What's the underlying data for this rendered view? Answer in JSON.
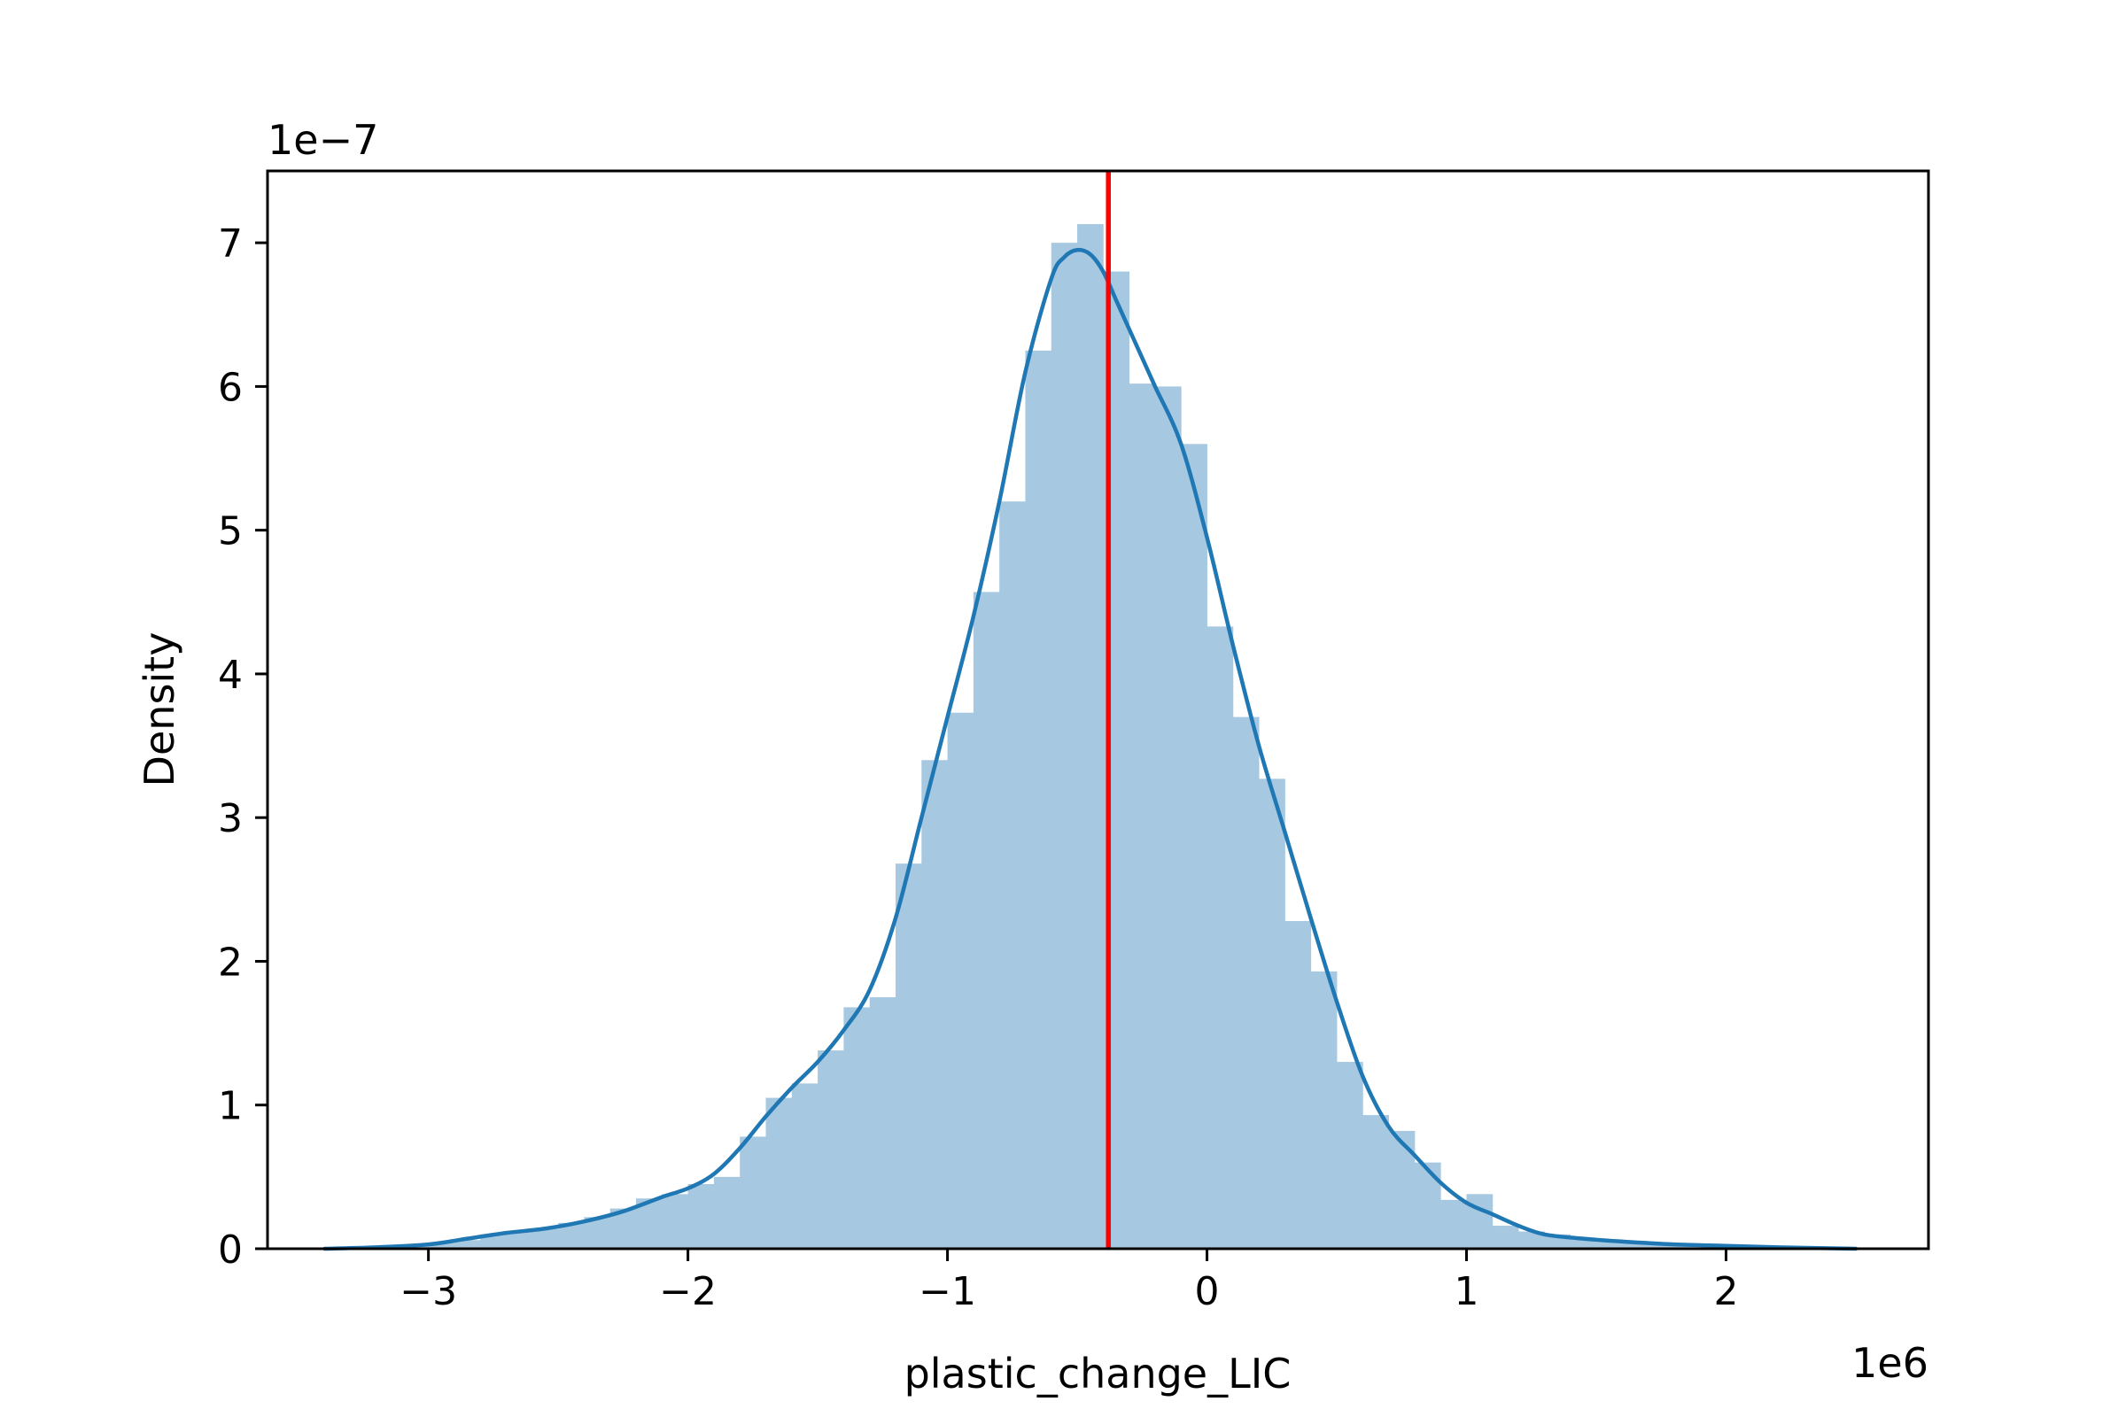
{
  "chart_data": {
    "type": "bar",
    "subtype": "histogram-with-kde",
    "title": "",
    "xlabel": "plastic_change_LIC",
    "ylabel": "Density",
    "x_offset_text": "1e6",
    "y_offset_text": "1e−7",
    "x_multiplier": 1000000,
    "y_multiplier": 1e-07,
    "xlim": [
      -3.62,
      2.78
    ],
    "ylim": [
      0,
      7.5
    ],
    "x_ticks": [
      -3,
      -2,
      -1,
      0,
      1,
      2
    ],
    "x_tick_labels": [
      "−3",
      "−2",
      "−1",
      "0",
      "1",
      "2"
    ],
    "y_ticks": [
      0,
      1,
      2,
      3,
      4,
      5,
      6,
      7
    ],
    "y_tick_labels": [
      "0",
      "1",
      "2",
      "3",
      "4",
      "5",
      "6",
      "7"
    ],
    "grid": false,
    "legend": "none",
    "histogram": {
      "color": "#a6c8e1",
      "bin_edges": [
        -3.4,
        -3.3,
        -3.2,
        -3.1,
        -3.0,
        -2.9,
        -2.8,
        -2.7,
        -2.6,
        -2.5,
        -2.4,
        -2.3,
        -2.2,
        -2.1,
        -2.0,
        -1.9,
        -1.8,
        -1.7,
        -1.6,
        -1.5,
        -1.4,
        -1.3,
        -1.2,
        -1.1,
        -1.0,
        -0.9,
        -0.8,
        -0.7,
        -0.6,
        -0.5,
        -0.4,
        -0.3,
        -0.2,
        -0.1,
        0.0,
        0.1,
        0.2,
        0.3,
        0.4,
        0.5,
        0.6,
        0.7,
        0.8,
        0.9,
        1.0,
        1.1,
        1.2,
        1.3,
        1.4,
        1.5,
        1.6,
        1.7,
        1.8,
        1.9,
        2.0,
        2.1,
        2.2,
        2.3,
        2.4,
        2.5
      ],
      "values": [
        0.01,
        0.01,
        0.02,
        0.02,
        0.04,
        0.06,
        0.1,
        0.12,
        0.14,
        0.18,
        0.22,
        0.28,
        0.35,
        0.38,
        0.45,
        0.5,
        0.78,
        1.05,
        1.15,
        1.38,
        1.68,
        1.75,
        2.68,
        3.4,
        3.73,
        4.57,
        5.2,
        6.25,
        7.0,
        7.13,
        6.8,
        6.02,
        6.0,
        5.6,
        4.33,
        3.7,
        3.27,
        2.28,
        1.93,
        1.3,
        0.93,
        0.82,
        0.6,
        0.34,
        0.38,
        0.16,
        0.12,
        0.1,
        0.07,
        0.06,
        0.05,
        0.04,
        0.02,
        0.02,
        0.01,
        0.01,
        0.01,
        0.01,
        0.01
      ]
    },
    "kde": {
      "color": "#1f77b4",
      "x": [
        -3.4,
        -3.2,
        -3.0,
        -2.85,
        -2.7,
        -2.55,
        -2.4,
        -2.25,
        -2.1,
        -2.0,
        -1.9,
        -1.8,
        -1.7,
        -1.6,
        -1.5,
        -1.4,
        -1.3,
        -1.2,
        -1.1,
        -1.0,
        -0.9,
        -0.8,
        -0.7,
        -0.6,
        -0.55,
        -0.5,
        -0.45,
        -0.4,
        -0.35,
        -0.3,
        -0.25,
        -0.2,
        -0.1,
        0.0,
        0.1,
        0.2,
        0.3,
        0.4,
        0.5,
        0.6,
        0.7,
        0.8,
        0.9,
        1.0,
        1.1,
        1.2,
        1.3,
        1.45,
        1.6,
        1.8,
        2.0,
        2.2,
        2.5
      ],
      "y": [
        0.0,
        0.01,
        0.03,
        0.07,
        0.11,
        0.14,
        0.19,
        0.26,
        0.36,
        0.42,
        0.52,
        0.7,
        0.92,
        1.12,
        1.3,
        1.52,
        1.8,
        2.3,
        3.0,
        3.7,
        4.4,
        5.2,
        6.1,
        6.75,
        6.9,
        6.95,
        6.92,
        6.8,
        6.6,
        6.4,
        6.2,
        6.0,
        5.6,
        4.95,
        4.2,
        3.5,
        2.9,
        2.3,
        1.72,
        1.2,
        0.85,
        0.65,
        0.46,
        0.32,
        0.24,
        0.16,
        0.1,
        0.07,
        0.05,
        0.03,
        0.02,
        0.01,
        0.0
      ]
    },
    "vline": {
      "x": -0.38,
      "color": "#ff0000"
    }
  }
}
